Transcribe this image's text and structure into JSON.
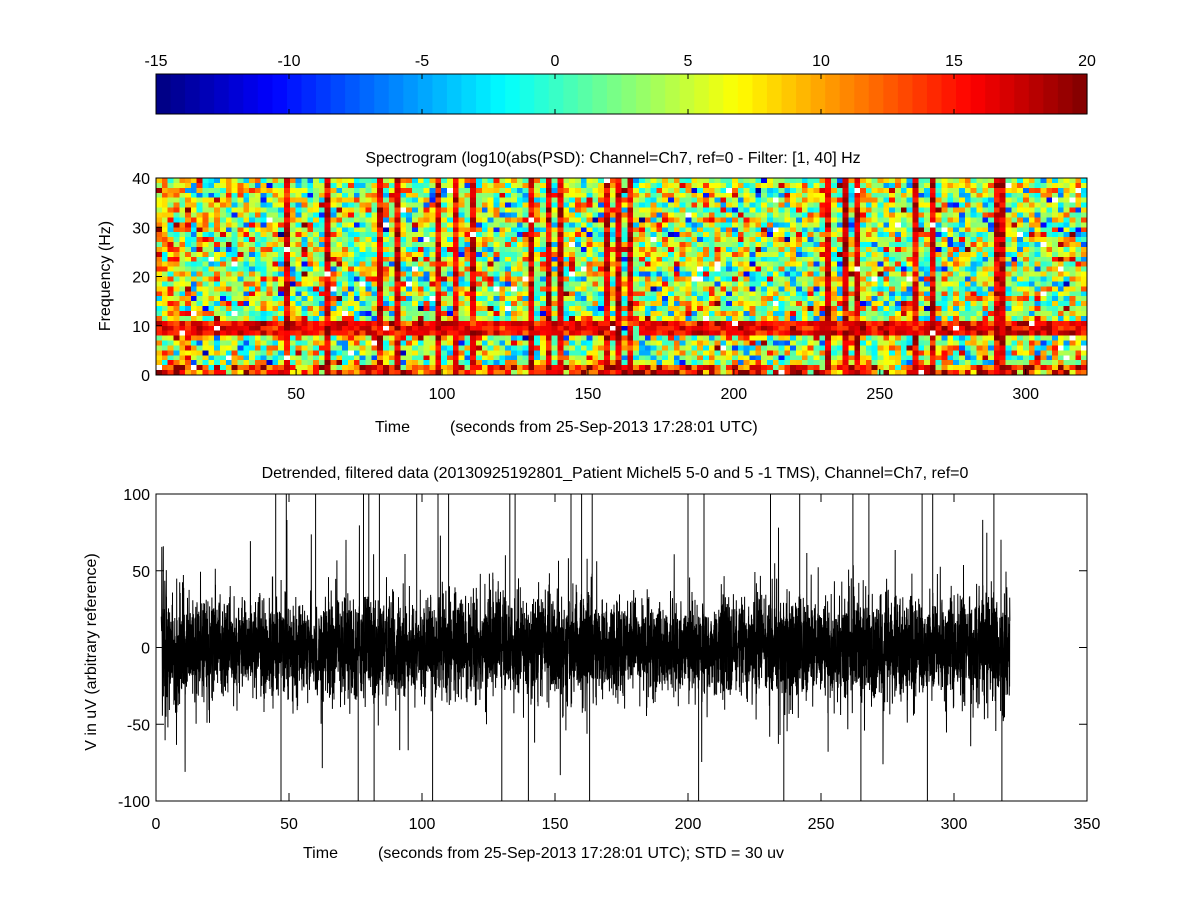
{
  "chart_data": [
    {
      "type": "heatmap",
      "role": "colorbar",
      "colormap": "jet",
      "range": [
        -15,
        20
      ],
      "ticks": [
        -15,
        -10,
        -5,
        0,
        5,
        10,
        15,
        20
      ],
      "tick_labels": [
        "-15",
        "-10",
        "-5",
        "0",
        "5",
        "10",
        "15",
        "20"
      ]
    },
    {
      "type": "heatmap",
      "title": "Spectrogram (log10(abs(PSD): Channel=Ch7, ref=0 - Filter: [1, 40] Hz",
      "xlabel_prefix": "Time",
      "xlabel_suffix": "(seconds from 25-Sep-2013 17:28:01 UTC)",
      "ylabel": "Frequency (Hz)",
      "xlim": [
        2,
        321
      ],
      "ylim": [
        0,
        40
      ],
      "xticks": [
        50,
        100,
        150,
        200,
        250,
        300
      ],
      "xtick_labels": [
        "50",
        "100",
        "150",
        "200",
        "250",
        "300"
      ],
      "yticks": [
        0,
        10,
        20,
        30,
        40
      ],
      "ytick_labels": [
        "0",
        "10",
        "20",
        "30",
        "40"
      ],
      "color_range": [
        -15,
        20
      ],
      "time_bin_s": 2,
      "freq_bin_hz": 1,
      "features": {
        "alpha_band_hz": [
          8,
          11
        ],
        "alpha_band_value": 16,
        "alpha_gap_s": [
          161,
          168
        ],
        "broadband_artifact_columns_s": [
          46,
          60,
          77,
          84,
          98,
          104,
          110,
          130,
          135,
          140,
          156,
          160,
          164,
          232,
          237,
          242,
          262,
          268,
          289,
          292
        ],
        "low_freq_hot_hz": [
          0,
          2
        ],
        "noise_mean": 4,
        "noise_spread": 6
      }
    },
    {
      "type": "line",
      "title": "Detrended, filtered data (20130925192801_Patient Michel5 5-0 and 5 -1 TMS),  Channel=Ch7, ref=0",
      "xlabel_prefix": "Time",
      "xlabel_suffix": "(seconds from 25-Sep-2013 17:28:01 UTC);  STD = 30 uv",
      "ylabel": "V in uV (arbitrary reference)",
      "xlim": [
        0,
        350
      ],
      "ylim": [
        -100,
        100
      ],
      "xticks": [
        0,
        50,
        100,
        150,
        200,
        250,
        300,
        350
      ],
      "xtick_labels": [
        "0",
        "50",
        "100",
        "150",
        "200",
        "250",
        "300",
        "350"
      ],
      "yticks": [
        -100,
        -50,
        0,
        50,
        100
      ],
      "ytick_labels": [
        "-100",
        "-50",
        "0",
        "50",
        "100"
      ],
      "series": [
        {
          "color": "#000000",
          "x_range": [
            2,
            321
          ],
          "std_uv": 30,
          "envelope_uv": [
            [
              2,
              55
            ],
            [
              10,
              50
            ],
            [
              20,
              40
            ],
            [
              40,
              35
            ],
            [
              60,
              38
            ],
            [
              80,
              40
            ],
            [
              100,
              35
            ],
            [
              120,
              38
            ],
            [
              140,
              40
            ],
            [
              155,
              45
            ],
            [
              160,
              50
            ],
            [
              170,
              38
            ],
            [
              200,
              35
            ],
            [
              220,
              38
            ],
            [
              230,
              45
            ],
            [
              250,
              40
            ],
            [
              270,
              42
            ],
            [
              290,
              40
            ],
            [
              310,
              42
            ],
            [
              321,
              45
            ]
          ],
          "spikes_s": [
            45,
            47,
            49,
            60,
            76,
            78,
            80,
            82,
            84,
            98,
            104,
            106,
            110,
            130,
            133,
            135,
            140,
            156,
            160,
            163,
            164,
            200,
            204,
            206,
            231,
            236,
            242,
            262,
            265,
            268,
            288,
            290,
            292,
            315,
            318
          ]
        }
      ]
    }
  ]
}
